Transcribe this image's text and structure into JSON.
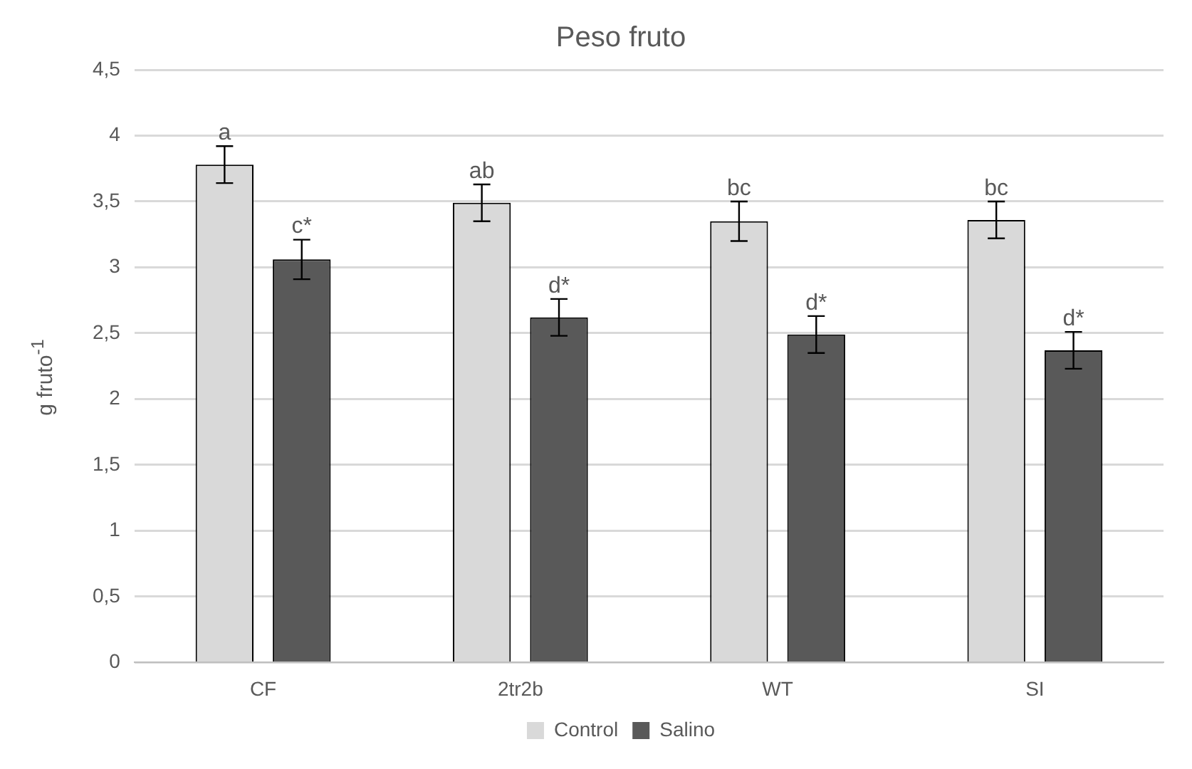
{
  "chart_data": {
    "type": "bar",
    "title": "Peso fruto",
    "ylabel": "g fruto$^{-1}$",
    "categories": [
      "CF",
      "2tr2b",
      "WT",
      "SI"
    ],
    "series": [
      {
        "name": "Control",
        "color": "#d9d9d9",
        "values": [
          3.78,
          3.49,
          3.35,
          3.36
        ],
        "errors": [
          0.14,
          0.14,
          0.15,
          0.14
        ]
      },
      {
        "name": "Salino",
        "color": "#595959",
        "values": [
          3.06,
          2.62,
          2.49,
          2.37
        ],
        "errors": [
          0.15,
          0.14,
          0.14,
          0.14
        ]
      }
    ],
    "ylim": [
      0,
      4.5
    ],
    "yticks": [
      0,
      {
        "value": 0.5,
        "label": "0,5"
      },
      1,
      {
        "value": 1.5,
        "label": "1,5"
      },
      2,
      {
        "value": 2.5,
        "label": "2,5"
      },
      3,
      {
        "value": 3.5,
        "label": "3,5"
      },
      4,
      {
        "value": 4.5,
        "label": "4,5"
      }
    ],
    "grid": "y",
    "legend": "bottom",
    "annotations": [
      "a",
      "c*",
      "ab",
      "d*",
      "bc",
      "d*",
      "bc",
      "d*"
    ]
  }
}
